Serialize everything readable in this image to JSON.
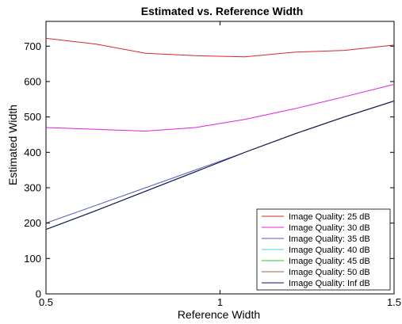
{
  "chart_data": {
    "type": "line",
    "title": "Estimated vs. Reference Width",
    "xlabel": "Reference Width",
    "ylabel": "Estimated Width",
    "xlim": [
      0.5,
      1.5
    ],
    "ylim": [
      0,
      770
    ],
    "xticks": [
      0.5,
      1,
      1.5
    ],
    "xtick_labels": [
      "0.5",
      "1",
      "1.5"
    ],
    "yticks": [
      0,
      100,
      200,
      300,
      400,
      500,
      600,
      700
    ],
    "ytick_labels": [
      "0",
      "100",
      "200",
      "300",
      "400",
      "500",
      "600",
      "700"
    ],
    "grid": false,
    "legend_position": "bottom-right",
    "x": [
      0.5,
      0.643,
      0.786,
      0.929,
      1.071,
      1.214,
      1.357,
      1.5
    ],
    "series": [
      {
        "name": "Image Quality: 25 dB",
        "color": "#d62728",
        "values": [
          722,
          706,
          680,
          673,
          670,
          683,
          688,
          703
        ]
      },
      {
        "name": "Image Quality: 30 dB",
        "color": "#e020e0",
        "values": [
          470,
          465,
          460,
          470,
          493,
          523,
          557,
          592
        ]
      },
      {
        "name": "Image Quality: 35 dB",
        "color": "#5555c8",
        "values": [
          200,
          250,
          300,
          350,
          400,
          452,
          500,
          545
        ]
      },
      {
        "name": "Image Quality: 40 dB",
        "color": "#40d8e0",
        "values": [
          183,
          235,
          290,
          345,
          400,
          452,
          500,
          545
        ]
      },
      {
        "name": "Image Quality: 45 dB",
        "color": "#30c030",
        "values": [
          182,
          235,
          290,
          345,
          400,
          452,
          500,
          545
        ]
      },
      {
        "name": "Image Quality: 50 dB",
        "color": "#a06030",
        "values": [
          182,
          235,
          290,
          345,
          400,
          452,
          500,
          545
        ]
      },
      {
        "name": "Image Quality: Inf dB",
        "color": "#101060",
        "values": [
          182,
          235,
          290,
          345,
          400,
          452,
          500,
          545
        ]
      }
    ]
  }
}
